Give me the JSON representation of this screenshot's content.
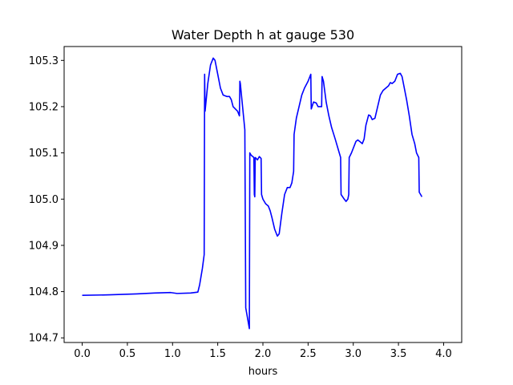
{
  "chart_data": {
    "type": "line",
    "title": "Water Depth h at gauge 530",
    "xlabel": "hours",
    "ylabel": "",
    "xlim": [
      -0.2,
      4.2
    ],
    "ylim": [
      104.69,
      105.33
    ],
    "grid": false,
    "line_color": "#0000ff",
    "x_ticks": [
      0.0,
      0.5,
      1.0,
      1.5,
      2.0,
      2.5,
      3.0,
      3.5,
      4.0
    ],
    "x_tick_labels": [
      "0.0",
      "0.5",
      "1.0",
      "1.5",
      "2.0",
      "2.5",
      "3.0",
      "3.5",
      "4.0"
    ],
    "y_ticks": [
      104.7,
      104.8,
      104.9,
      105.0,
      105.1,
      105.2,
      105.3
    ],
    "y_tick_labels": [
      "104.7",
      "104.8",
      "104.9",
      "105.0",
      "105.1",
      "105.2",
      "105.3"
    ],
    "series": [
      {
        "points": [
          [
            0.0,
            104.792
          ],
          [
            0.3,
            104.793
          ],
          [
            0.6,
            104.795
          ],
          [
            0.8,
            104.797
          ],
          [
            0.98,
            104.798
          ],
          [
            1.05,
            104.796
          ],
          [
            1.2,
            104.797
          ],
          [
            1.28,
            104.799
          ],
          [
            1.3,
            104.815
          ],
          [
            1.33,
            104.85
          ],
          [
            1.35,
            104.88
          ],
          [
            1.355,
            105.27
          ],
          [
            1.36,
            105.19
          ],
          [
            1.39,
            105.25
          ],
          [
            1.42,
            105.29
          ],
          [
            1.45,
            105.305
          ],
          [
            1.47,
            105.3
          ],
          [
            1.5,
            105.27
          ],
          [
            1.53,
            105.24
          ],
          [
            1.56,
            105.225
          ],
          [
            1.6,
            105.222
          ],
          [
            1.63,
            105.222
          ],
          [
            1.65,
            105.215
          ],
          [
            1.67,
            105.2
          ],
          [
            1.72,
            105.19
          ],
          [
            1.74,
            105.18
          ],
          [
            1.745,
            105.255
          ],
          [
            1.75,
            105.25
          ],
          [
            1.77,
            105.21
          ],
          [
            1.8,
            105.15
          ],
          [
            1.81,
            104.765
          ],
          [
            1.85,
            104.72
          ],
          [
            1.855,
            105.1
          ],
          [
            1.87,
            105.095
          ],
          [
            1.9,
            105.09
          ],
          [
            1.905,
            105.01
          ],
          [
            1.91,
            105.005
          ],
          [
            1.915,
            105.09
          ],
          [
            1.94,
            105.085
          ],
          [
            1.96,
            105.092
          ],
          [
            1.98,
            105.088
          ],
          [
            1.985,
            105.01
          ],
          [
            2.0,
            105.0
          ],
          [
            2.03,
            104.99
          ],
          [
            2.06,
            104.985
          ],
          [
            2.08,
            104.975
          ],
          [
            2.1,
            104.96
          ],
          [
            2.13,
            104.935
          ],
          [
            2.16,
            104.92
          ],
          [
            2.18,
            104.925
          ],
          [
            2.21,
            104.97
          ],
          [
            2.24,
            105.01
          ],
          [
            2.27,
            105.025
          ],
          [
            2.3,
            105.025
          ],
          [
            2.32,
            105.035
          ],
          [
            2.34,
            105.06
          ],
          [
            2.345,
            105.14
          ],
          [
            2.37,
            105.175
          ],
          [
            2.4,
            105.2
          ],
          [
            2.43,
            105.225
          ],
          [
            2.46,
            105.24
          ],
          [
            2.5,
            105.255
          ],
          [
            2.53,
            105.27
          ],
          [
            2.535,
            105.195
          ],
          [
            2.56,
            105.21
          ],
          [
            2.59,
            105.208
          ],
          [
            2.61,
            105.2
          ],
          [
            2.65,
            105.2
          ],
          [
            2.655,
            105.265
          ],
          [
            2.67,
            105.255
          ],
          [
            2.7,
            105.21
          ],
          [
            2.73,
            105.18
          ],
          [
            2.76,
            105.155
          ],
          [
            2.8,
            105.13
          ],
          [
            2.83,
            105.11
          ],
          [
            2.86,
            105.09
          ],
          [
            2.865,
            105.01
          ],
          [
            2.9,
            105.0
          ],
          [
            2.92,
            104.995
          ],
          [
            2.94,
            105.0
          ],
          [
            2.95,
            105.01
          ],
          [
            2.955,
            105.09
          ],
          [
            2.98,
            105.1
          ],
          [
            3.0,
            105.11
          ],
          [
            3.03,
            105.125
          ],
          [
            3.05,
            105.128
          ],
          [
            3.07,
            105.125
          ],
          [
            3.1,
            105.12
          ],
          [
            3.12,
            105.13
          ],
          [
            3.14,
            105.16
          ],
          [
            3.17,
            105.182
          ],
          [
            3.19,
            105.18
          ],
          [
            3.21,
            105.172
          ],
          [
            3.24,
            105.175
          ],
          [
            3.27,
            105.2
          ],
          [
            3.3,
            105.225
          ],
          [
            3.33,
            105.235
          ],
          [
            3.36,
            105.24
          ],
          [
            3.39,
            105.245
          ],
          [
            3.41,
            105.252
          ],
          [
            3.43,
            105.25
          ],
          [
            3.46,
            105.255
          ],
          [
            3.49,
            105.27
          ],
          [
            3.52,
            105.272
          ],
          [
            3.54,
            105.265
          ],
          [
            3.56,
            105.245
          ],
          [
            3.59,
            105.215
          ],
          [
            3.62,
            105.18
          ],
          [
            3.65,
            105.14
          ],
          [
            3.68,
            105.12
          ],
          [
            3.7,
            105.1
          ],
          [
            3.725,
            105.09
          ],
          [
            3.73,
            105.015
          ],
          [
            3.76,
            105.005
          ]
        ]
      }
    ]
  }
}
